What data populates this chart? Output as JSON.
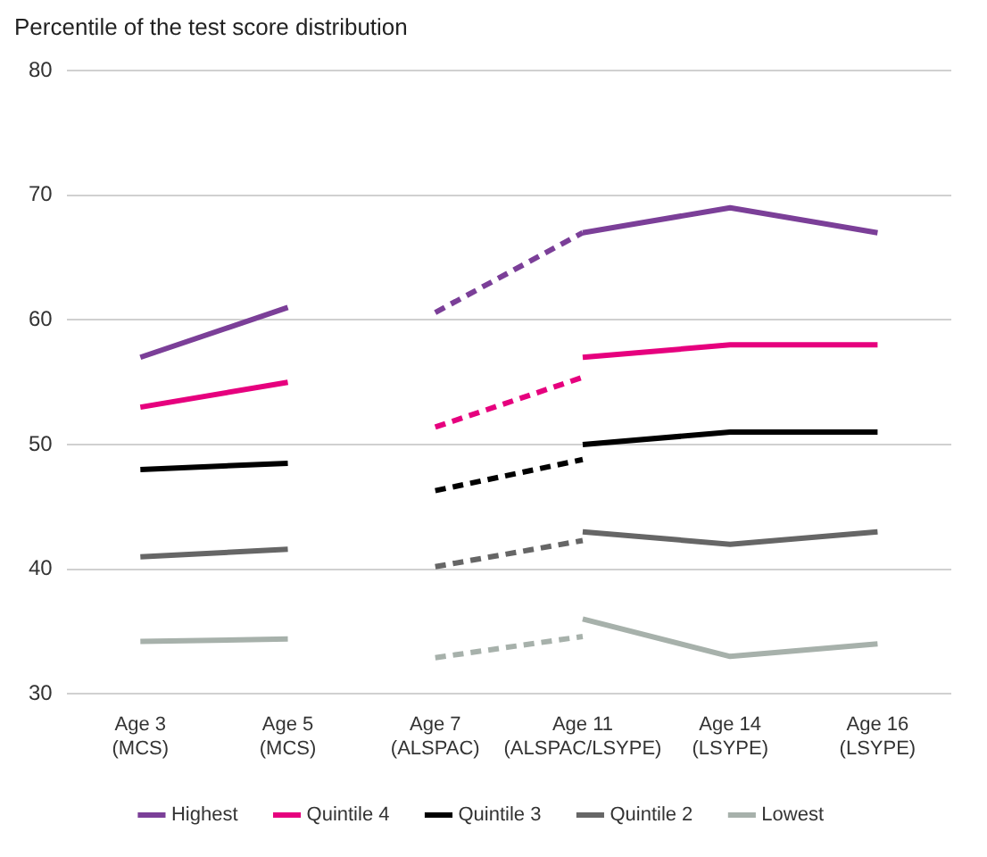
{
  "chart_data": {
    "type": "line",
    "title": "Percentile of the test score distribution",
    "categories": [
      "Age 3 (MCS)",
      "Age 5 (MCS)",
      "Age 7 (ALSPAC)",
      "Age 11 (ALSPAC/LSYPE)",
      "Age 14 (LSYPE)",
      "Age 16 (LSYPE)"
    ],
    "series": [
      {
        "name": "Highest",
        "color": "#7b3f98",
        "line_style": "solid",
        "values": [
          57,
          61,
          null,
          null,
          null,
          null
        ]
      },
      {
        "color": "#7b3f98",
        "line_style": "dashed",
        "values": [
          null,
          null,
          60.6,
          67,
          null,
          null
        ]
      },
      {
        "color": "#7b3f98",
        "line_style": "solid",
        "values": [
          null,
          null,
          null,
          67,
          69,
          67
        ]
      },
      {
        "name": "Quintile 4",
        "color": "#e6007e",
        "line_style": "solid",
        "values": [
          53,
          55,
          null,
          null,
          null,
          null
        ]
      },
      {
        "color": "#e6007e",
        "line_style": "dashed",
        "values": [
          null,
          null,
          51.4,
          55.4,
          null,
          null
        ]
      },
      {
        "color": "#e6007e",
        "line_style": "solid",
        "values": [
          null,
          null,
          null,
          57,
          58,
          58
        ]
      },
      {
        "name": "Quintile 3",
        "color": "#000000",
        "line_style": "solid",
        "values": [
          48,
          48.5,
          null,
          null,
          null,
          null
        ]
      },
      {
        "color": "#000000",
        "line_style": "dashed",
        "values": [
          null,
          null,
          46.3,
          48.8,
          null,
          null
        ]
      },
      {
        "color": "#000000",
        "line_style": "solid",
        "values": [
          null,
          null,
          null,
          50,
          51,
          51
        ]
      },
      {
        "name": "Quintile 2",
        "color": "#666666",
        "line_style": "solid",
        "values": [
          41,
          41.6,
          null,
          null,
          null,
          null
        ]
      },
      {
        "color": "#666666",
        "line_style": "dashed",
        "values": [
          null,
          null,
          40.2,
          42.3,
          null,
          null
        ]
      },
      {
        "color": "#666666",
        "line_style": "solid",
        "values": [
          null,
          null,
          null,
          43,
          42,
          43
        ]
      },
      {
        "name": "Lowest",
        "color": "#a7b1ab",
        "line_style": "solid",
        "values": [
          34.2,
          34.4,
          null,
          null,
          null,
          null
        ]
      },
      {
        "color": "#a7b1ab",
        "line_style": "dashed",
        "values": [
          null,
          null,
          32.9,
          34.6,
          null,
          null
        ]
      },
      {
        "color": "#a7b1ab",
        "line_style": "solid",
        "values": [
          null,
          null,
          null,
          36,
          33,
          34
        ]
      }
    ],
    "ylim": [
      30,
      80
    ],
    "yticks": [
      30,
      40,
      50,
      60,
      70,
      80
    ],
    "grid": "y",
    "legend": "bottom",
    "marker": "none"
  }
}
